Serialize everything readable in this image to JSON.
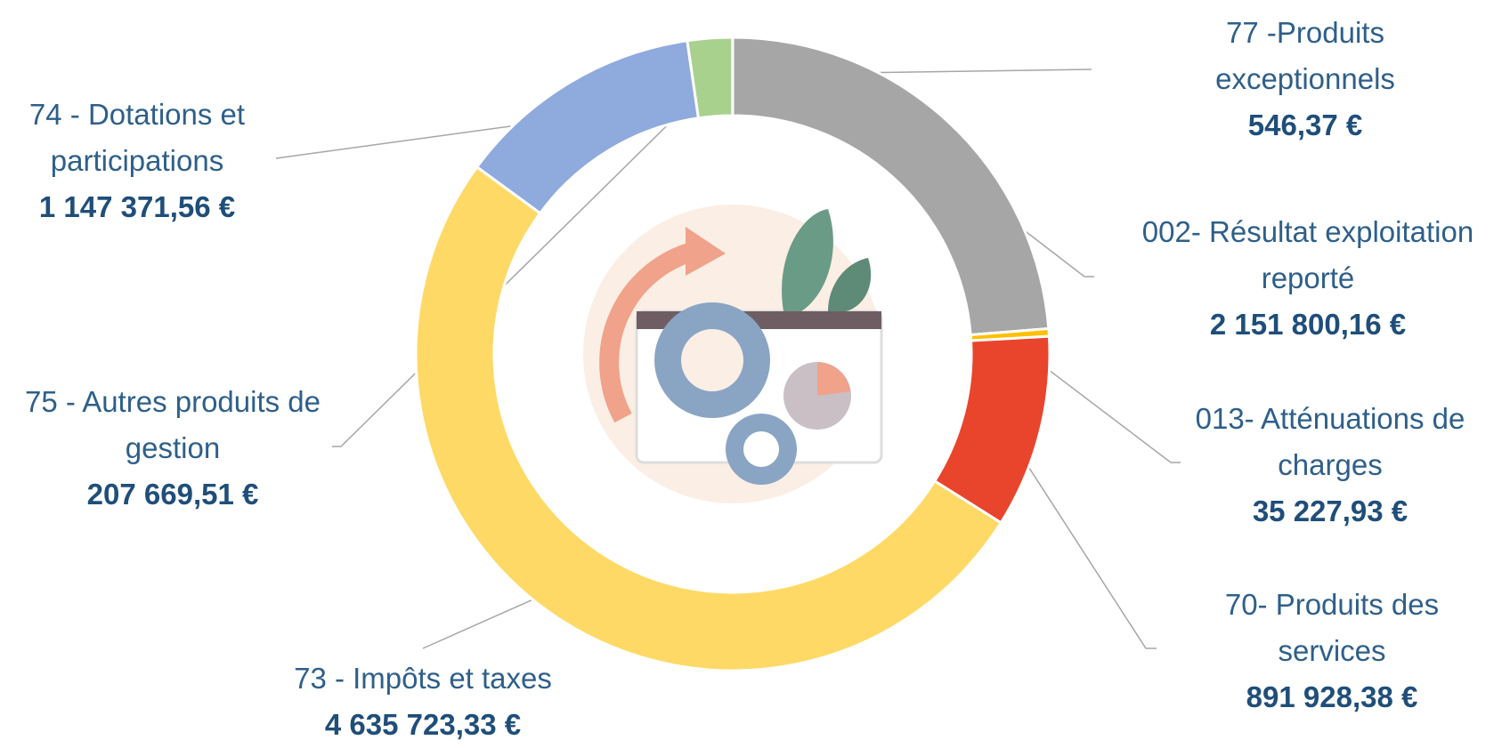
{
  "chart_data": {
    "type": "donut",
    "categories": [
      "002- Résultat exploitation reporté",
      "013- Atténuations de charges",
      "70- Produits des services",
      "73 - Impôts et taxes",
      "74 - Dotations et participations",
      "75 - Autres produits de gestion",
      "77  -Produits exceptionnels"
    ],
    "values": [
      2151800.16,
      35227.93,
      891928.38,
      4635723.33,
      1147371.56,
      207669.51,
      546.37
    ],
    "value_labels": [
      "2 151 800,16 €",
      "35 227,93 €",
      "891 928,38 €",
      "4 635 723,33 €",
      "1 147 371,56 €",
      "207 669,51 €",
      "546,37 €"
    ],
    "colors": [
      "#a6a6a6",
      "#ffc000",
      "#e8452c",
      "#ffd966",
      "#8faadc",
      "#a9d18e",
      "#70ad47"
    ]
  }
}
